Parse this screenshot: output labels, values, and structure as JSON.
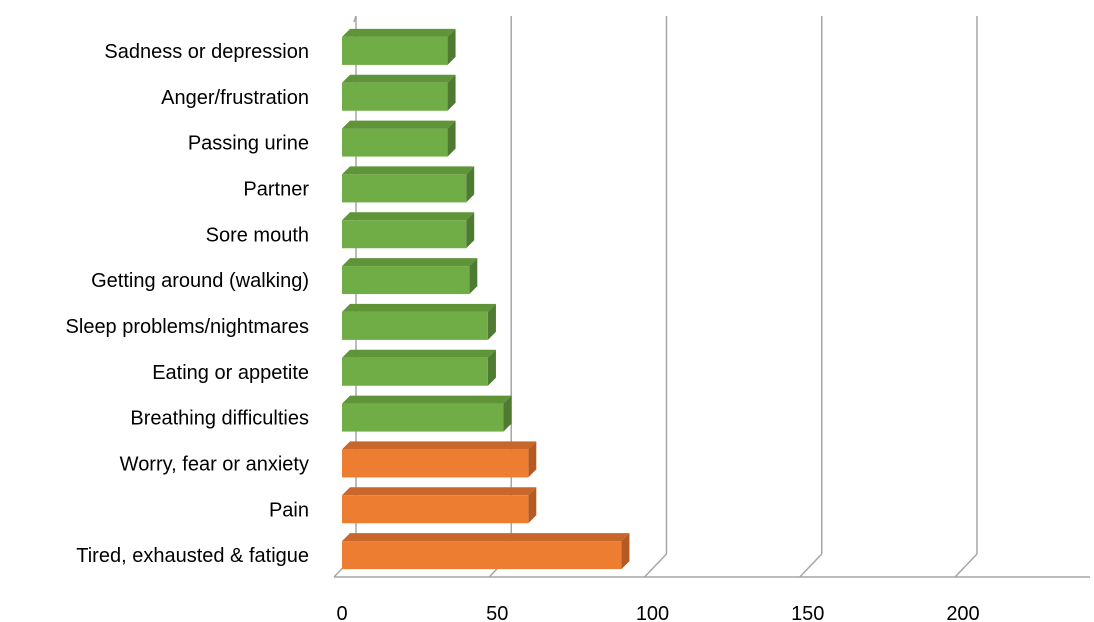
{
  "chart_data": {
    "type": "bar",
    "orientation": "horizontal",
    "style": "3d",
    "categories": [
      "Tired, exhausted & fatigue",
      "Pain",
      "Worry, fear or anxiety",
      "Breathing difficulties",
      "Eating or appetite",
      "Sleep problems/nightmares",
      "Getting around (walking)",
      "Sore mouth",
      "Partner",
      "Passing urine",
      "Anger/frustration",
      "Sadness or depression"
    ],
    "values": [
      90,
      60,
      60,
      52,
      47,
      47,
      41,
      40,
      40,
      34,
      34,
      34
    ],
    "highlight_count": 3,
    "colors": {
      "highlight_front": "#ED7D31",
      "highlight_side": "#B45A22",
      "highlight_top": "#C9662A",
      "normal_front": "#70AD47",
      "normal_side": "#4E7B31",
      "normal_top": "#5F9439",
      "gridline": "#A6A6A6",
      "axis": "#A6A6A6"
    },
    "xlim": [
      0,
      240
    ],
    "xticks": [
      0,
      50,
      100,
      150,
      200
    ],
    "tick_labels": [
      "0",
      "50",
      "100",
      "150",
      "200"
    ],
    "grid": true,
    "legend": "none",
    "title": "",
    "xlabel": "",
    "ylabel": ""
  }
}
